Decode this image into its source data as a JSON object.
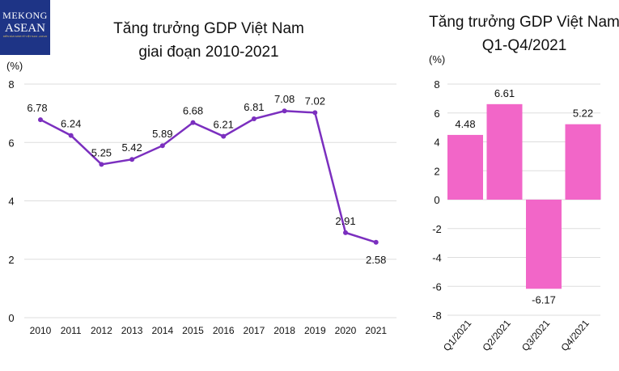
{
  "logo": {
    "line1": "MEKONG",
    "line2": "ASEAN",
    "line3": "DIỄN ĐÀN KINH TẾ VIỆT NAM - ASEAN",
    "color": "#1e3486"
  },
  "chart_data": [
    {
      "type": "line",
      "title": [
        "Tăng trưởng GDP Việt Nam",
        "giai đoạn 2010-2021"
      ],
      "ylabel": "(%)",
      "categories": [
        "2010",
        "2011",
        "2012",
        "2013",
        "2014",
        "2015",
        "2016",
        "2017",
        "2018",
        "2019",
        "2020",
        "2021"
      ],
      "values": [
        6.78,
        6.24,
        5.25,
        5.42,
        5.89,
        6.68,
        6.21,
        6.81,
        7.08,
        7.02,
        2.91,
        2.58
      ],
      "data_labels": [
        "6.78",
        "6.24",
        "5.25",
        "5.42",
        "5.89",
        "6.68",
        "6.21",
        "6.81",
        "7.08",
        "7.02",
        "2.91",
        "2.58"
      ],
      "ylim": [
        0,
        8
      ],
      "yticks": [
        0,
        2,
        4,
        6,
        8
      ],
      "grid": true,
      "color": "#7b2fbf"
    },
    {
      "type": "bar",
      "title": [
        "Tăng trưởng GDP Việt Nam",
        "Q1-Q4/2021"
      ],
      "ylabel": "(%)",
      "categories": [
        "Q1/2021",
        "Q2/2021",
        "Q3/2021",
        "Q4/2021"
      ],
      "values": [
        4.48,
        6.61,
        -6.17,
        5.22
      ],
      "data_labels": [
        "4.48",
        "6.61",
        "-6.17",
        "5.22"
      ],
      "ylim": [
        -8,
        8
      ],
      "yticks": [
        -8,
        -6,
        -4,
        -2,
        0,
        2,
        4,
        6,
        8
      ],
      "grid": true,
      "color": "#f266c8"
    }
  ]
}
